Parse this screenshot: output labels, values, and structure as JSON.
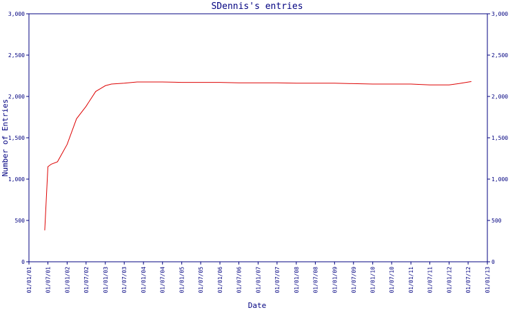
{
  "chart_data": {
    "type": "line",
    "title": "SDennis's entries",
    "xlabel": "Date",
    "ylabel": "Number of Entries",
    "xlim": [
      "2001-01-01",
      "2013-01-01"
    ],
    "ylim": [
      0,
      3000
    ],
    "y_ticks": [
      0,
      500,
      1000,
      1500,
      2000,
      2500,
      3000
    ],
    "y_tick_labels": [
      "0",
      "500",
      "1,000",
      "1,500",
      "2,000",
      "2,500",
      "3,000"
    ],
    "x_ticks": [
      "2001-01-01",
      "2001-07-01",
      "2002-01-01",
      "2002-07-01",
      "2003-01-01",
      "2003-07-01",
      "2004-01-01",
      "2004-07-01",
      "2005-01-01",
      "2005-07-01",
      "2006-01-01",
      "2006-07-01",
      "2007-01-01",
      "2007-07-01",
      "2008-01-01",
      "2008-07-01",
      "2009-01-01",
      "2009-07-01",
      "2010-01-01",
      "2010-07-01",
      "2011-01-01",
      "2011-07-01",
      "2012-01-01",
      "2012-07-01",
      "2013-01-01"
    ],
    "x_tick_labels": [
      "01/01/01",
      "01/07/01",
      "01/01/02",
      "01/07/02",
      "01/01/03",
      "01/07/03",
      "01/01/04",
      "01/07/04",
      "01/01/05",
      "01/07/05",
      "01/01/06",
      "01/07/06",
      "01/01/07",
      "01/07/07",
      "01/01/08",
      "01/07/08",
      "01/01/09",
      "01/07/09",
      "01/01/10",
      "01/07/10",
      "01/01/11",
      "01/07/11",
      "01/01/12",
      "01/07/12",
      "01/01/13"
    ],
    "grid": false,
    "series": [
      {
        "color": "#dd0000",
        "x": [
          "2001-06-01",
          "2001-07-01",
          "2001-08-01",
          "2001-10-01",
          "2002-01-01",
          "2002-04-01",
          "2002-07-01",
          "2002-10-01",
          "2003-01-01",
          "2003-03-01",
          "2003-07-01",
          "2003-11-01",
          "2004-01-01",
          "2004-07-01",
          "2005-01-01",
          "2005-07-01",
          "2006-01-01",
          "2006-07-01",
          "2007-01-01",
          "2007-07-01",
          "2008-01-01",
          "2008-07-01",
          "2009-01-01",
          "2009-07-01",
          "2010-01-01",
          "2010-07-01",
          "2011-01-01",
          "2011-07-01",
          "2012-01-01",
          "2012-04-01",
          "2012-08-01"
        ],
        "y": [
          380,
          1150,
          1180,
          1210,
          1420,
          1730,
          1880,
          2060,
          2130,
          2150,
          2160,
          2175,
          2175,
          2175,
          2170,
          2170,
          2170,
          2165,
          2165,
          2165,
          2160,
          2160,
          2160,
          2155,
          2150,
          2150,
          2150,
          2140,
          2140,
          2155,
          2180
        ]
      }
    ]
  }
}
